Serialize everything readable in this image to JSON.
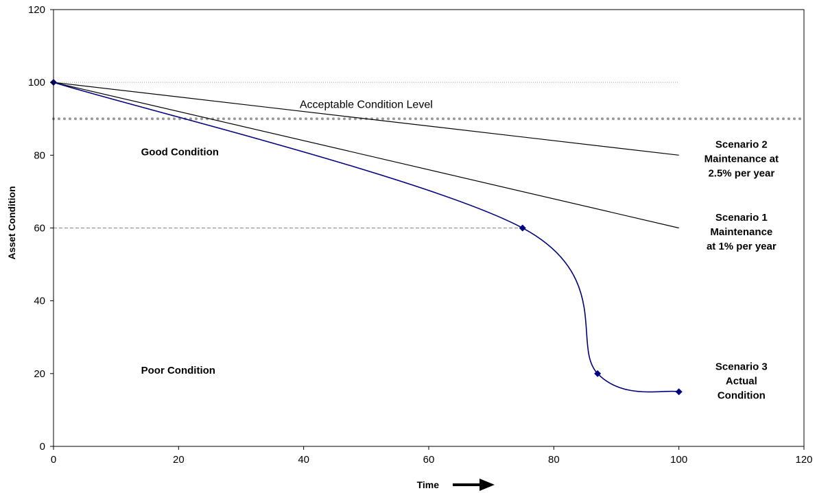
{
  "chart_data": {
    "type": "line",
    "title": "",
    "xlabel": "Time",
    "ylabel": "Asset Condition",
    "xlim": [
      0,
      120
    ],
    "ylim": [
      0,
      120
    ],
    "xticks": [
      "0",
      "20",
      "40",
      "60",
      "80",
      "100",
      "120"
    ],
    "yticks": [
      "0",
      "20",
      "40",
      "60",
      "80",
      "100",
      "120"
    ],
    "grid": false,
    "series": [
      {
        "x": [
          0,
          100
        ],
        "y": [
          100,
          80
        ],
        "color": "#000000",
        "smooth": false,
        "markers": false
      },
      {
        "x": [
          0,
          100
        ],
        "y": [
          100,
          60
        ],
        "color": "#000000",
        "smooth": false,
        "markers": false
      },
      {
        "x": [
          0,
          75,
          87,
          100
        ],
        "y": [
          100,
          60,
          20,
          15
        ],
        "color": "#000080",
        "smooth": true,
        "markers": true
      }
    ],
    "reference_lines": [
      {
        "y": 100,
        "x_end": 100,
        "style": "dotted-thin",
        "color": "#999999"
      },
      {
        "y": 90,
        "x_end": 120,
        "style": "dotted-thick",
        "color": "#999999"
      },
      {
        "y": 60,
        "x_end": 75,
        "style": "dashed",
        "color": "#888888"
      }
    ],
    "annotations": [
      {
        "id": "acceptable",
        "lines": [
          "Acceptable Condition Level"
        ],
        "x": 50,
        "y": 93,
        "bold": false
      },
      {
        "id": "good",
        "lines": [
          "Good Condition"
        ],
        "x": 14,
        "y": 80,
        "bold": true
      },
      {
        "id": "poor",
        "lines": [
          "Poor Condition"
        ],
        "x": 14,
        "y": 20,
        "bold": true
      },
      {
        "id": "scenario-2",
        "lines": [
          "Scenario 2",
          "Maintenance at",
          "2.5% per year"
        ],
        "x": 110,
        "y": 82,
        "bold": true
      },
      {
        "id": "scenario-1",
        "lines": [
          "Scenario 1",
          "Maintenance",
          "at 1% per year"
        ],
        "x": 110,
        "y": 62,
        "bold": true
      },
      {
        "id": "scenario-3",
        "lines": [
          "Scenario 3",
          "Actual",
          "Condition"
        ],
        "x": 110,
        "y": 21,
        "bold": true
      }
    ],
    "arrow": "right"
  }
}
